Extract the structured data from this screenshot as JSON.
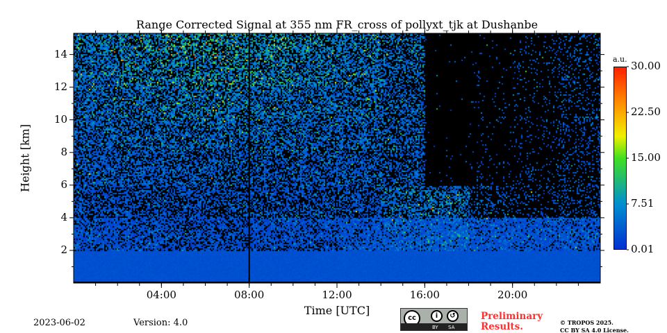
{
  "chart_data": {
    "type": "heatmap",
    "title": "Range Corrected Signal at 355 nm FR_cross of pollyxt_tjk at Dushanbe",
    "xlabel": "Time [UTC]",
    "ylabel": "Height [km]",
    "xlim_hours": [
      0,
      24
    ],
    "ylim_km": [
      0,
      15.3
    ],
    "xticks": [
      {
        "v": 4,
        "label": "04:00"
      },
      {
        "v": 8,
        "label": "08:00"
      },
      {
        "v": 12,
        "label": "12:00"
      },
      {
        "v": 16,
        "label": "16:00"
      },
      {
        "v": 20,
        "label": "20:00"
      }
    ],
    "yticks": [
      {
        "v": 2,
        "label": "2"
      },
      {
        "v": 4,
        "label": "4"
      },
      {
        "v": 6,
        "label": "6"
      },
      {
        "v": 8,
        "label": "8"
      },
      {
        "v": 10,
        "label": "10"
      },
      {
        "v": 12,
        "label": "12"
      },
      {
        "v": 14,
        "label": "14"
      }
    ],
    "data_gap_hours": [
      8.0
    ],
    "colorbar": {
      "unit": "a.u.",
      "min": 0.01,
      "max": 30,
      "ticks": [
        {
          "v": 0.01,
          "label": "0.01"
        },
        {
          "v": 7.51,
          "label": "7.51"
        },
        {
          "v": 15.0,
          "label": "15.00"
        },
        {
          "v": 22.5,
          "label": "22.50"
        },
        {
          "v": 30.0,
          "label": "30.00"
        }
      ]
    },
    "grid_time_bins_hours": [
      0,
      2,
      4,
      6,
      8,
      10,
      12,
      14,
      16,
      18,
      20,
      22,
      24
    ],
    "grid_height_bins_km": [
      0,
      2,
      4,
      6,
      8,
      10,
      12,
      14,
      16
    ],
    "mean_signal": [
      [
        2.5,
        2.5,
        2.5,
        2.5,
        2.5,
        2.5,
        2.6,
        2.6,
        2.6,
        2.6,
        2.6,
        2.6
      ],
      [
        2.2,
        2.2,
        2.2,
        2.2,
        2.2,
        2.3,
        2.5,
        3.0,
        3.2,
        2.6,
        2.4,
        2.4
      ],
      [
        2.5,
        2.5,
        2.5,
        2.5,
        2.5,
        2.5,
        2.6,
        4.0,
        4.5,
        3.0,
        2.5,
        2.5
      ],
      [
        3.0,
        3.0,
        3.2,
        3.2,
        3.0,
        3.0,
        3.0,
        3.0,
        2.5,
        2.5,
        2.5,
        2.5
      ],
      [
        3.5,
        3.8,
        4.0,
        4.0,
        3.8,
        3.5,
        3.5,
        3.5,
        2.5,
        2.5,
        2.5,
        2.5
      ],
      [
        4.0,
        4.5,
        5.0,
        5.0,
        4.5,
        4.2,
        4.0,
        3.5,
        3.0,
        3.0,
        3.0,
        3.0
      ],
      [
        4.5,
        5.5,
        6.0,
        6.5,
        6.0,
        5.0,
        4.5,
        4.0,
        3.0,
        3.0,
        3.0,
        3.0
      ],
      [
        5.0,
        6.0,
        7.0,
        7.5,
        7.0,
        6.0,
        5.0,
        4.5,
        3.0,
        3.0,
        3.0,
        3.0
      ]
    ],
    "signal_fraction": [
      [
        1,
        1,
        1,
        1,
        1,
        1,
        1,
        1,
        1,
        1,
        1,
        1
      ],
      [
        0.75,
        0.7,
        0.65,
        0.65,
        0.7,
        0.7,
        0.8,
        0.85,
        0.9,
        0.85,
        0.85,
        0.8
      ],
      [
        0.55,
        0.5,
        0.5,
        0.5,
        0.5,
        0.5,
        0.5,
        0.5,
        0.55,
        0.25,
        0.2,
        0.25
      ],
      [
        0.6,
        0.55,
        0.5,
        0.5,
        0.5,
        0.55,
        0.55,
        0.45,
        0.02,
        0.05,
        0.1,
        0.2
      ],
      [
        0.6,
        0.55,
        0.55,
        0.55,
        0.55,
        0.55,
        0.55,
        0.45,
        0.01,
        0.03,
        0.08,
        0.2
      ],
      [
        0.6,
        0.55,
        0.55,
        0.55,
        0.55,
        0.55,
        0.55,
        0.45,
        0.01,
        0.03,
        0.08,
        0.2
      ],
      [
        0.6,
        0.55,
        0.55,
        0.55,
        0.55,
        0.55,
        0.55,
        0.45,
        0.01,
        0.03,
        0.08,
        0.2
      ],
      [
        0.6,
        0.55,
        0.55,
        0.55,
        0.55,
        0.55,
        0.55,
        0.45,
        0.01,
        0.03,
        0.08,
        0.2
      ]
    ]
  },
  "footer": {
    "date": "2023-06-02",
    "version": "Version: 4.0",
    "preliminary_line1": "Preliminary",
    "preliminary_line2": "Results.",
    "copyright_line1": "© TROPOS 2025.",
    "copyright_line2": "CC BY SA 4.0 License.",
    "cc_logo_text": "cc",
    "cc_by": "BY",
    "cc_sa": "SA"
  }
}
